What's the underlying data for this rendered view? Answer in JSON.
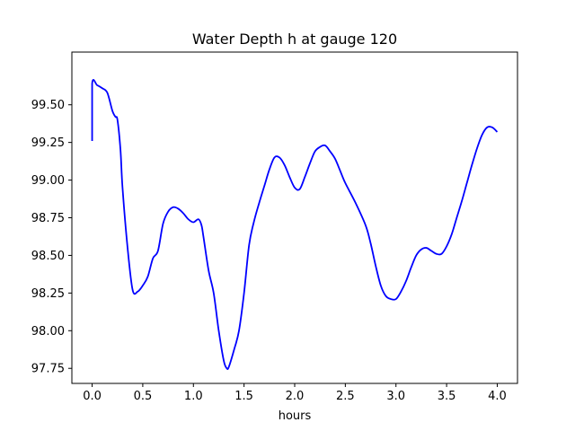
{
  "chart_data": {
    "type": "line",
    "title": "Water Depth h at gauge 120",
    "xlabel": "hours",
    "ylabel": "",
    "xlim": [
      -0.2,
      4.2
    ],
    "ylim": [
      97.65,
      99.85
    ],
    "x_ticks": [
      0.0,
      0.5,
      1.0,
      1.5,
      2.0,
      2.5,
      3.0,
      3.5,
      4.0
    ],
    "x_tick_labels": [
      "0.0",
      "0.5",
      "1.0",
      "1.5",
      "2.0",
      "2.5",
      "3.0",
      "3.5",
      "4.0"
    ],
    "y_ticks": [
      97.75,
      98.0,
      98.25,
      98.5,
      98.75,
      99.0,
      99.25,
      99.5
    ],
    "y_tick_labels": [
      "97.75",
      "98.00",
      "98.25",
      "98.50",
      "98.75",
      "99.00",
      "99.25",
      "99.50"
    ],
    "grid": false,
    "series": [
      {
        "color": "#0000ff",
        "x": [
          0.0,
          0.0,
          0.05,
          0.1,
          0.15,
          0.2,
          0.23,
          0.25,
          0.28,
          0.3,
          0.35,
          0.4,
          0.45,
          0.5,
          0.55,
          0.6,
          0.65,
          0.7,
          0.75,
          0.8,
          0.85,
          0.9,
          0.95,
          1.0,
          1.05,
          1.08,
          1.1,
          1.15,
          1.2,
          1.25,
          1.3,
          1.33,
          1.35,
          1.4,
          1.45,
          1.5,
          1.55,
          1.6,
          1.65,
          1.7,
          1.75,
          1.8,
          1.85,
          1.9,
          1.95,
          2.0,
          2.05,
          2.1,
          2.15,
          2.2,
          2.25,
          2.3,
          2.35,
          2.4,
          2.45,
          2.5,
          2.6,
          2.7,
          2.75,
          2.8,
          2.85,
          2.9,
          2.95,
          3.0,
          3.05,
          3.1,
          3.15,
          3.2,
          3.25,
          3.3,
          3.35,
          3.4,
          3.45,
          3.5,
          3.55,
          3.6,
          3.65,
          3.7,
          3.75,
          3.8,
          3.85,
          3.9,
          3.95,
          4.0
        ],
        "y": [
          99.26,
          99.64,
          99.63,
          99.61,
          99.58,
          99.46,
          99.42,
          99.4,
          99.2,
          98.95,
          98.55,
          98.27,
          98.26,
          98.3,
          98.36,
          98.48,
          98.53,
          98.71,
          98.79,
          98.82,
          98.81,
          98.78,
          98.74,
          98.72,
          98.74,
          98.7,
          98.62,
          98.4,
          98.25,
          98.0,
          97.8,
          97.75,
          97.76,
          97.87,
          98.0,
          98.25,
          98.57,
          98.73,
          98.85,
          98.96,
          99.07,
          99.15,
          99.15,
          99.1,
          99.02,
          98.95,
          98.94,
          99.02,
          99.11,
          99.19,
          99.22,
          99.23,
          99.19,
          99.14,
          99.06,
          98.98,
          98.85,
          98.7,
          98.58,
          98.43,
          98.3,
          98.23,
          98.21,
          98.21,
          98.26,
          98.33,
          98.42,
          98.5,
          98.54,
          98.55,
          98.53,
          98.51,
          98.51,
          98.56,
          98.64,
          98.75,
          98.86,
          98.98,
          99.1,
          99.21,
          99.3,
          99.35,
          99.35,
          99.32
        ]
      }
    ]
  }
}
